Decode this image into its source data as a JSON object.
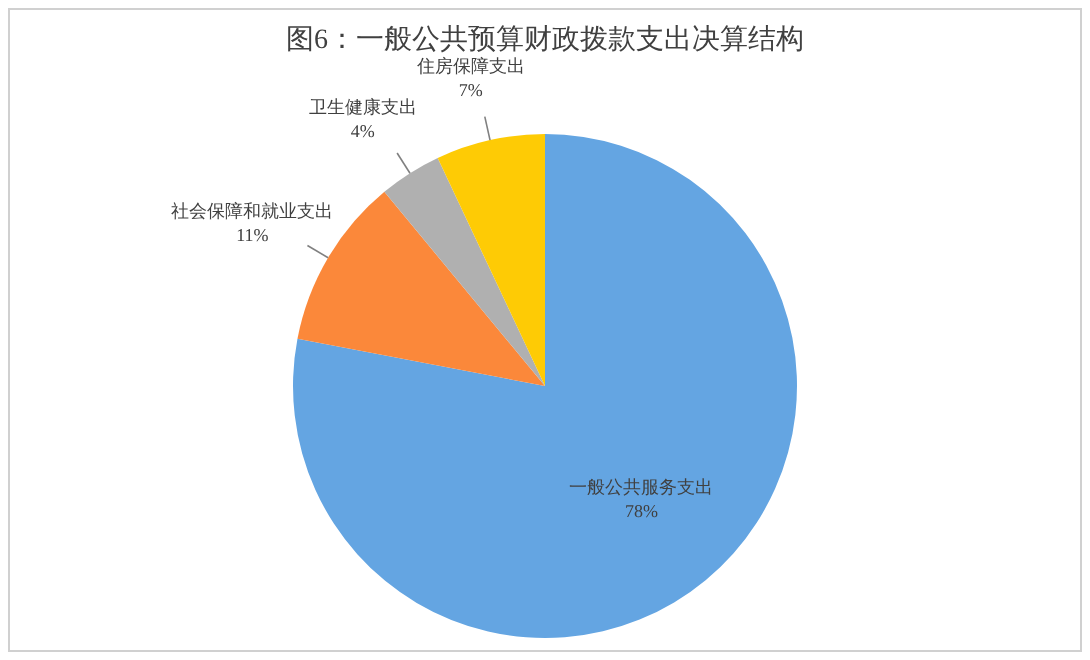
{
  "chart_data": {
    "type": "pie",
    "title": "图6：一般公共预算财政拨款支出决算结构",
    "categories": [
      "一般公共服务支出",
      "社会保障和就业支出",
      "卫生健康支出",
      "住房保障支出"
    ],
    "values": [
      78,
      11,
      4,
      7
    ],
    "value_labels": [
      "78%",
      "11%",
      "4%",
      "7%"
    ],
    "colors": [
      "#64a5e2",
      "#fb883a",
      "#b0b0b0",
      "#fecb05"
    ],
    "legend": false
  }
}
